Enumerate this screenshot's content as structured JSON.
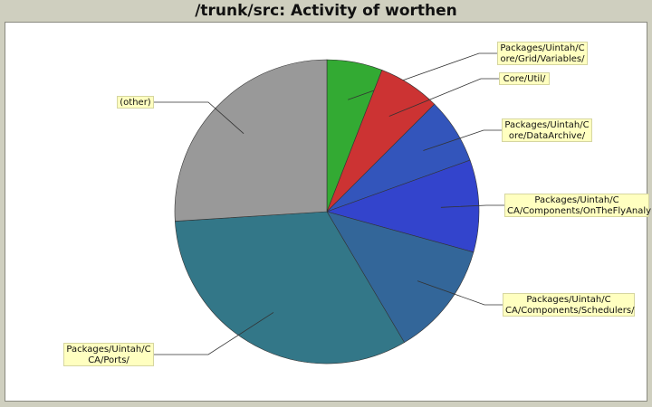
{
  "chart_data": {
    "type": "pie",
    "title": "/trunk/src: Activity of worthen",
    "slices": [
      {
        "label": "Packages/Uintah/C\nore/Grid/Variables/",
        "value": 5.9,
        "color": "#33aa33"
      },
      {
        "label": "Core/Util/",
        "value": 6.6,
        "color": "#cc3333"
      },
      {
        "label": "Packages/Uintah/C\nore/DataArchive/",
        "value": 7.0,
        "color": "#3355bb"
      },
      {
        "label": "Packages/Uintah/C\nCA/Components/OnTheFlyAnaly",
        "value": 9.8,
        "color": "#3344cc"
      },
      {
        "label": "Packages/Uintah/C\nCA/Components/Schedulers/",
        "value": 12.2,
        "color": "#336699"
      },
      {
        "label": "Packages/Uintah/C\nCA/Ports/",
        "value": 32.5,
        "color": "#337788"
      },
      {
        "label": "(other)",
        "value": 26.0,
        "color": "#999999"
      }
    ]
  }
}
